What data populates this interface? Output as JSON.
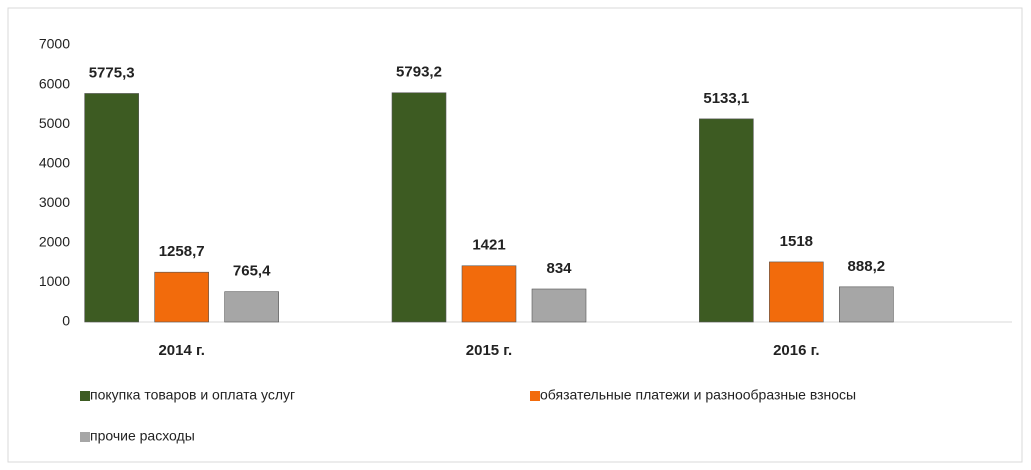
{
  "chart_data": {
    "type": "bar",
    "categories": [
      "2014 г.",
      "2015 г.",
      "2016 г."
    ],
    "series": [
      {
        "name": "покупка товаров и оплата услуг",
        "color": "#3d5b22",
        "values": [
          5775.3,
          5793.2,
          5133.1
        ],
        "value_labels": [
          "5775,3",
          "5793,2",
          "5133,1"
        ]
      },
      {
        "name": "обязательные платежи и разнообразные взносы",
        "color": "#f26b0c",
        "values": [
          1258.7,
          1421,
          1518
        ],
        "value_labels": [
          "1258,7",
          "1421",
          "1518"
        ]
      },
      {
        "name": "прочие расходы",
        "color": "#a6a6a6",
        "values": [
          765.4,
          834,
          888.2
        ],
        "value_labels": [
          "765,4",
          "834",
          "888,2"
        ]
      }
    ],
    "ylim": [
      0,
      7000
    ],
    "yticks": [
      0,
      1000,
      2000,
      3000,
      4000,
      5000,
      6000,
      7000
    ],
    "grid": false,
    "legend": "bottom"
  }
}
